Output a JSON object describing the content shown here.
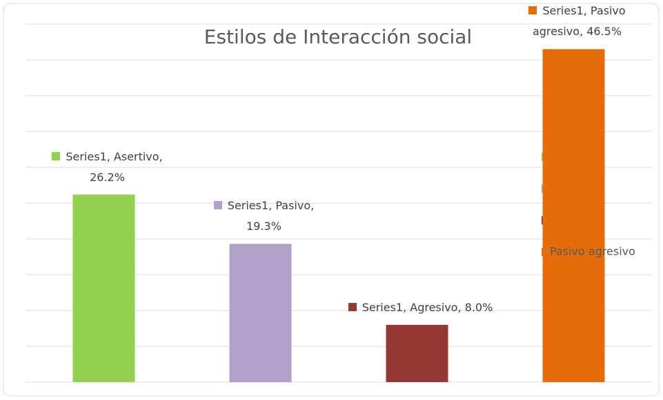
{
  "chart_data": {
    "type": "bar",
    "title": "Estilos de Interacción social",
    "categories": [
      "Asertivo",
      "Pasivo",
      "Agresivo",
      "Pasivo agresivo"
    ],
    "values": [
      26.2,
      19.3,
      8.0,
      46.5
    ],
    "value_labels": [
      "Series1, Asertivo, 26.2%",
      "Series1, Pasivo, 19.3%",
      "Series1, Agresivo, 8.0%",
      "Series1, Pasivo agresivo, 46.5%"
    ],
    "colors": [
      "#92d050",
      "#b1a0c7",
      "#953735",
      "#e46c0a"
    ],
    "ylim": [
      0,
      50
    ],
    "yticks": [
      0,
      5,
      10,
      15,
      20,
      25,
      30,
      35,
      40,
      45,
      50
    ],
    "grid": true,
    "legend": "right"
  }
}
